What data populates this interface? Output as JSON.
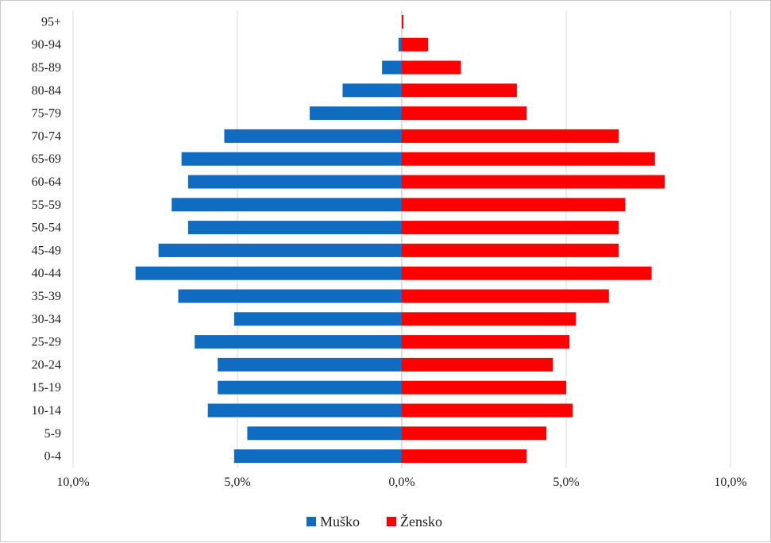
{
  "chart_data": {
    "type": "bar",
    "orientation": "horizontal",
    "subtype": "population-pyramid",
    "categories": [
      "0-4",
      "5-9",
      "10-14",
      "15-19",
      "20-24",
      "25-29",
      "30-34",
      "35-39",
      "40-44",
      "45-49",
      "50-54",
      "55-59",
      "60-64",
      "65-69",
      "70-74",
      "75-79",
      "80-84",
      "85-89",
      "90-94",
      "95+"
    ],
    "series": [
      {
        "name": "Muško",
        "color": "#0f6cc1",
        "values": [
          5.1,
          4.7,
          5.9,
          5.6,
          5.6,
          6.3,
          5.1,
          6.8,
          8.1,
          7.4,
          6.5,
          7.0,
          6.5,
          6.7,
          5.4,
          2.8,
          1.8,
          0.6,
          0.1,
          0.0
        ]
      },
      {
        "name": "Žensko",
        "color": "#ff0000",
        "values": [
          3.8,
          4.4,
          5.2,
          5.0,
          4.6,
          5.1,
          5.3,
          6.3,
          7.6,
          6.6,
          6.6,
          6.8,
          8.0,
          7.7,
          6.6,
          3.8,
          3.5,
          1.8,
          0.8,
          0.05
        ]
      }
    ],
    "xlim": [
      -10,
      10
    ],
    "xticks": [
      -10,
      -5,
      0,
      5,
      10
    ],
    "xtick_labels": [
      "10,0%",
      "5,0%",
      "0,0%",
      "5,0%",
      "10,0%"
    ],
    "grid": "vertical",
    "legend_position": "bottom",
    "title": "",
    "xlabel": "",
    "ylabel": ""
  }
}
